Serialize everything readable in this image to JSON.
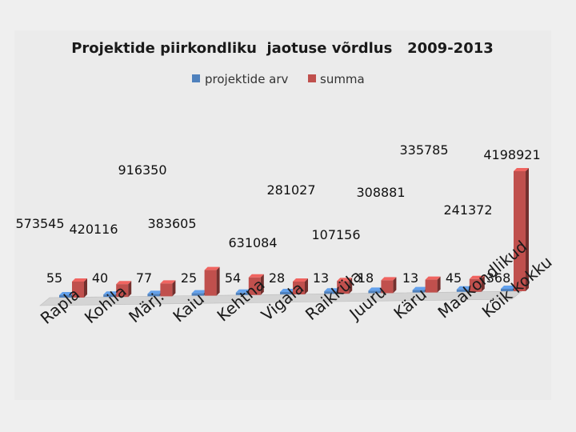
{
  "chart_data": {
    "type": "bar",
    "title": "Projektide piirkondliku  jaotuse võrdlus   2009-2013",
    "categories": [
      "Rapla",
      "Kohila",
      "Märj.",
      "Kaiu",
      "Kehtna",
      "Vigala",
      "Raikküla",
      "Juuru",
      "Käru",
      "Maakondlikud",
      "Kõik kokku"
    ],
    "series": [
      {
        "name": "projektide arv",
        "color": "#4f81bd",
        "values": [
          55,
          40,
          77,
          25,
          54,
          28,
          13,
          18,
          13,
          45,
          368
        ]
      },
      {
        "name": "summa",
        "color": "#c0504d",
        "values": [
          573545,
          420116,
          383605,
          916350,
          631084,
          281027,
          107156,
          308881,
          335785,
          241372,
          4198921
        ]
      }
    ],
    "value_labels": {
      "projektide arv": [
        "55",
        "40",
        "77",
        "25",
        "54",
        "28",
        "13",
        "18",
        "13",
        "45",
        "368"
      ],
      "summa": [
        "573545",
        "420116",
        "383605",
        "916350",
        "631084",
        "281027",
        "107156",
        "308881",
        "335785",
        "241372",
        "4198921"
      ]
    },
    "ylim": [
      0,
      4198921
    ],
    "legend": "top-center",
    "grid": false,
    "xlabel": "",
    "ylabel": ""
  }
}
